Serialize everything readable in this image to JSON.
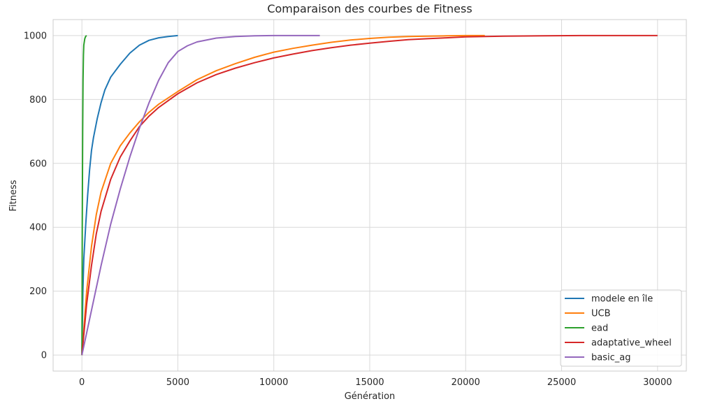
{
  "chart_data": {
    "type": "line",
    "title": "Comparaison des courbes de Fitness",
    "xlabel": "Génération",
    "ylabel": "Fitness",
    "xlim": [
      -1500,
      31500
    ],
    "ylim": [
      -50,
      1050
    ],
    "xticks": [
      0,
      5000,
      10000,
      15000,
      20000,
      25000,
      30000
    ],
    "yticks": [
      0,
      200,
      400,
      600,
      800,
      1000
    ],
    "grid": true,
    "legend_position": "lower-right",
    "series": [
      {
        "name": "modele en île",
        "color": "#1f77b4",
        "x": [
          0,
          50,
          100,
          200,
          300,
          400,
          500,
          600,
          800,
          1000,
          1200,
          1500,
          2000,
          2500,
          3000,
          3500,
          4000,
          4500,
          5000
        ],
        "y": [
          0,
          200,
          300,
          410,
          500,
          580,
          640,
          680,
          740,
          790,
          830,
          870,
          910,
          945,
          970,
          985,
          993,
          997,
          1000
        ]
      },
      {
        "name": "UCB",
        "color": "#ff7f0e",
        "x": [
          0,
          250,
          500,
          750,
          1000,
          1500,
          2000,
          2500,
          3000,
          3500,
          4000,
          5000,
          6000,
          7000,
          8000,
          9000,
          10000,
          11000,
          12000,
          13000,
          14000,
          15000,
          16000,
          17000,
          18000,
          19000,
          20000,
          21000
        ],
        "y": [
          0,
          200,
          340,
          440,
          510,
          600,
          655,
          695,
          730,
          760,
          785,
          825,
          862,
          890,
          912,
          932,
          948,
          960,
          970,
          979,
          986,
          991,
          995,
          997,
          998,
          999,
          1000,
          1000
        ]
      },
      {
        "name": "ead",
        "color": "#2ca02c",
        "x": [
          0,
          20,
          40,
          60,
          80,
          100,
          150,
          200,
          250
        ],
        "y": [
          0,
          400,
          700,
          860,
          940,
          970,
          990,
          998,
          1000
        ]
      },
      {
        "name": "adaptative_wheel",
        "color": "#d62728",
        "x": [
          0,
          250,
          500,
          750,
          1000,
          1500,
          2000,
          2500,
          3000,
          3500,
          4000,
          5000,
          6000,
          7000,
          8000,
          9000,
          10000,
          11000,
          12000,
          13000,
          14000,
          15000,
          16000,
          17000,
          18000,
          19000,
          20000,
          22000,
          24000,
          26000,
          28000,
          30000
        ],
        "y": [
          0,
          160,
          280,
          380,
          450,
          550,
          620,
          670,
          715,
          748,
          775,
          818,
          852,
          878,
          898,
          915,
          930,
          942,
          953,
          962,
          970,
          976,
          982,
          987,
          990,
          993,
          996,
          998,
          999,
          1000,
          1000,
          1000
        ]
      },
      {
        "name": "basic_ag",
        "color": "#9467bd",
        "x": [
          0,
          500,
          1000,
          1500,
          2000,
          2500,
          3000,
          3500,
          4000,
          4500,
          5000,
          5500,
          6000,
          7000,
          8000,
          9000,
          10000,
          11000,
          12400
        ],
        "y": [
          0,
          140,
          280,
          410,
          520,
          620,
          710,
          790,
          860,
          915,
          950,
          968,
          980,
          992,
          997,
          999,
          1000,
          1000,
          1000
        ]
      }
    ]
  }
}
